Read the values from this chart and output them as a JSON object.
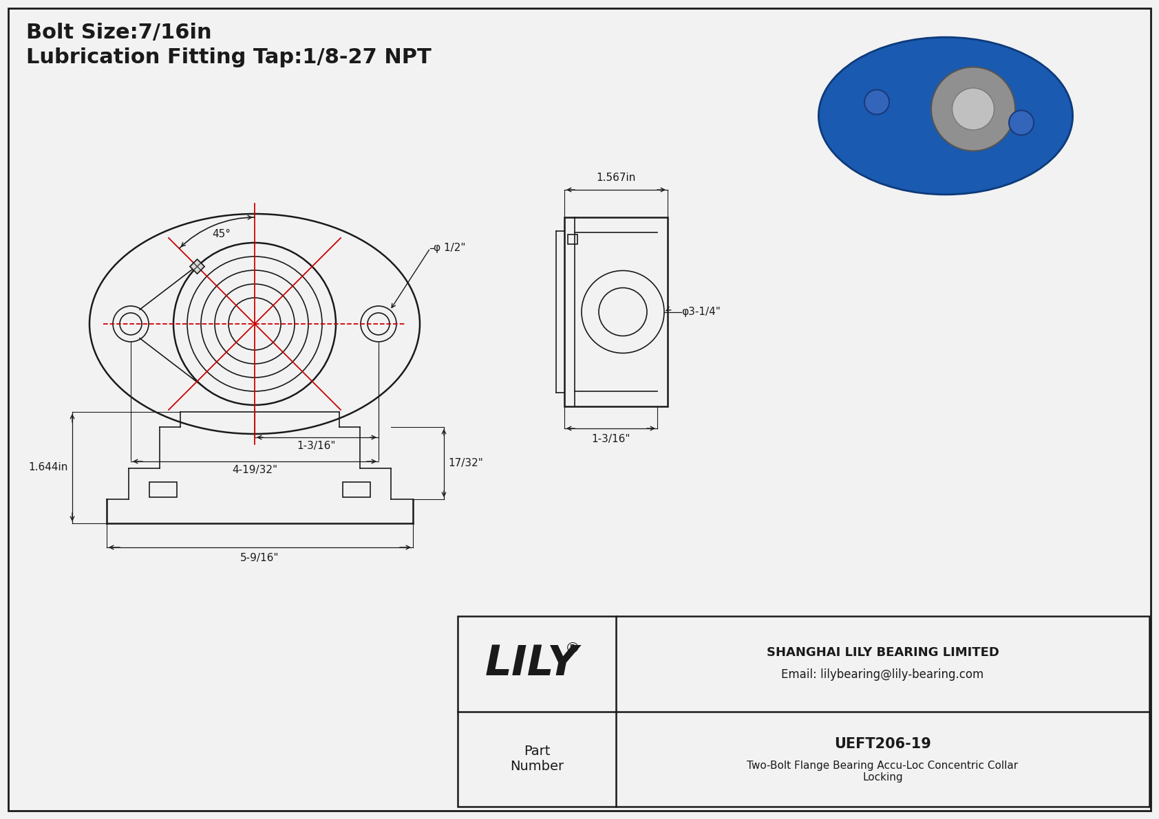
{
  "bg_color": "#f2f2f2",
  "line_color": "#1a1a1a",
  "red_color": "#cc0000",
  "title_line1": "Bolt Size:7/16in",
  "title_line2": "Lubrication Fitting Tap:1/8-27 NPT",
  "company": "SHANGHAI LILY BEARING LIMITED",
  "email": "Email: lilybearing@lily-bearing.com",
  "part_label": "Part\nNumber",
  "part_number": "UEFT206-19",
  "part_desc": "Two-Bolt Flange Bearing Accu-Loc Concentric Collar\nLocking",
  "brand": "LILY",
  "dim_4_19_32": "4-19/32\"",
  "dim_1_3_16_bot": "1-3/16\"",
  "dim_phi_half": "φ 1/2\"",
  "dim_45": "45°",
  "dim_1_567": "1.567in",
  "dim_3_14": "φ3-1/4\"",
  "dim_1_3_16_side": "1-3/16\"",
  "dim_1_644": "1.644in",
  "dim_17_32": "17/32\"",
  "dim_5_9_16": "5-9/16\""
}
